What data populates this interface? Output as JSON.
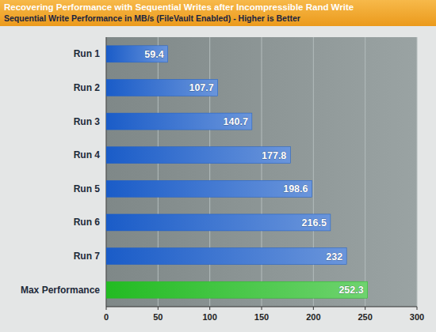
{
  "chart_data": {
    "type": "bar",
    "orientation": "horizontal",
    "title": "Recovering Performance with Sequential Writes after Incompressible Rand Write",
    "subtitle": "Sequential Write Performance in MB/s (FileVault Enabled) - Higher is Better",
    "categories": [
      "Run 1",
      "Run 2",
      "Run 3",
      "Run 4",
      "Run 5",
      "Run 6",
      "Run 7",
      "Max Performance"
    ],
    "values": [
      59.4,
      107.7,
      140.7,
      177.8,
      198.6,
      216.5,
      232,
      252.3
    ],
    "colors": [
      "#1a5cc8",
      "#1a5cc8",
      "#1a5cc8",
      "#1a5cc8",
      "#1a5cc8",
      "#1a5cc8",
      "#1a5cc8",
      "#22bb22"
    ],
    "xlim": [
      0,
      300
    ],
    "xticks": [
      0,
      50,
      100,
      150,
      200,
      250,
      300
    ],
    "grid": true,
    "data_labels": true
  }
}
